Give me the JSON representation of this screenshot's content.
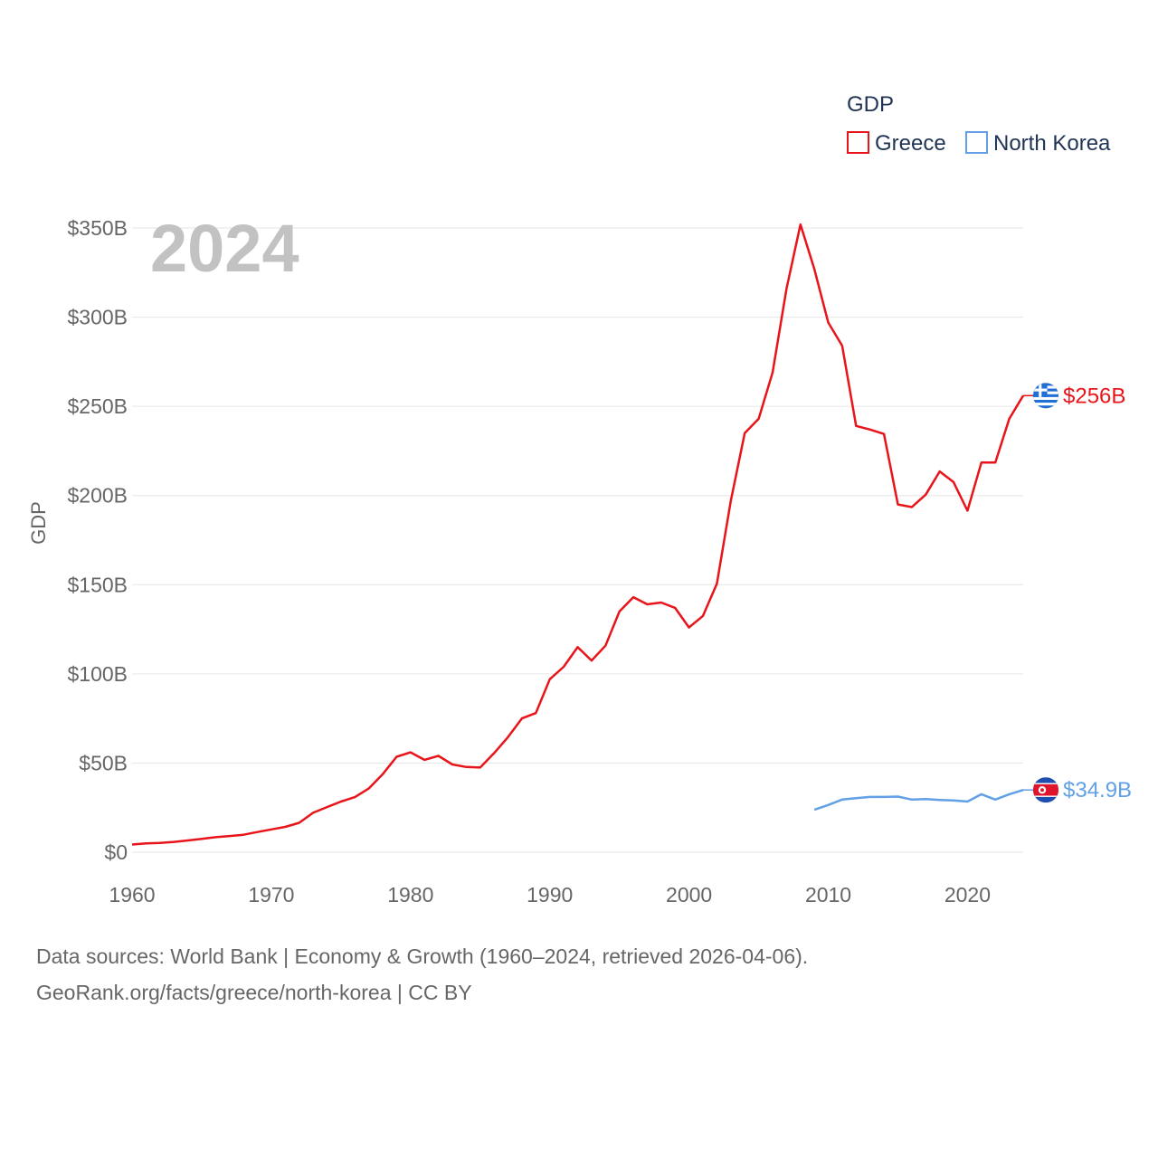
{
  "chart_data": {
    "type": "line",
    "title": "",
    "year_display": "2024",
    "xlabel": "",
    "ylabel": "GDP",
    "xlim": [
      1960,
      2024
    ],
    "ylim": [
      0,
      350
    ],
    "x_ticks": [
      1960,
      1970,
      1980,
      1990,
      2000,
      2010,
      2020
    ],
    "y_ticks": [
      0,
      50,
      100,
      150,
      200,
      250,
      300,
      350
    ],
    "y_tick_labels": [
      "$0",
      "$50B",
      "$100B",
      "$150B",
      "$200B",
      "$250B",
      "$300B",
      "$350B"
    ],
    "legend": {
      "title": "GDP",
      "position": "top-right"
    },
    "series": [
      {
        "name": "Greece",
        "color": "#e8141a",
        "flag_icon": "greece-flag-icon",
        "end_label": "$256B",
        "points": [
          [
            1960,
            4.3
          ],
          [
            1961,
            4.9
          ],
          [
            1962,
            5.2
          ],
          [
            1963,
            5.8
          ],
          [
            1964,
            6.6
          ],
          [
            1965,
            7.5
          ],
          [
            1966,
            8.4
          ],
          [
            1967,
            9.1
          ],
          [
            1968,
            9.8
          ],
          [
            1969,
            11.3
          ],
          [
            1970,
            12.8
          ],
          [
            1971,
            14.2
          ],
          [
            1972,
            16.5
          ],
          [
            1973,
            22.1
          ],
          [
            1974,
            25.3
          ],
          [
            1975,
            28.4
          ],
          [
            1976,
            30.9
          ],
          [
            1977,
            35.7
          ],
          [
            1978,
            43.7
          ],
          [
            1979,
            53.5
          ],
          [
            1980,
            56.0
          ],
          [
            1981,
            51.8
          ],
          [
            1982,
            54.0
          ],
          [
            1983,
            49.2
          ],
          [
            1984,
            47.8
          ],
          [
            1985,
            47.5
          ],
          [
            1986,
            55.6
          ],
          [
            1987,
            64.5
          ],
          [
            1988,
            75.0
          ],
          [
            1989,
            78.0
          ],
          [
            1990,
            97.0
          ],
          [
            1991,
            104.0
          ],
          [
            1992,
            115.0
          ],
          [
            1993,
            107.5
          ],
          [
            1994,
            115.8
          ],
          [
            1995,
            135.0
          ],
          [
            1996,
            143.0
          ],
          [
            1997,
            139.0
          ],
          [
            1998,
            140.0
          ],
          [
            1999,
            137.0
          ],
          [
            2000,
            126.0
          ],
          [
            2001,
            132.5
          ],
          [
            2002,
            150.5
          ],
          [
            2003,
            197.0
          ],
          [
            2004,
            235.0
          ],
          [
            2005,
            243.0
          ],
          [
            2006,
            269.0
          ],
          [
            2007,
            316.0
          ],
          [
            2008,
            352.0
          ],
          [
            2009,
            327.0
          ],
          [
            2010,
            297.0
          ],
          [
            2011,
            284.0
          ],
          [
            2012,
            239.0
          ],
          [
            2013,
            237.0
          ],
          [
            2014,
            234.5
          ],
          [
            2015,
            195.0
          ],
          [
            2016,
            193.5
          ],
          [
            2017,
            200.5
          ],
          [
            2018,
            213.5
          ],
          [
            2019,
            207.5
          ],
          [
            2020,
            191.5
          ],
          [
            2021,
            218.5
          ],
          [
            2022,
            218.5
          ],
          [
            2023,
            243.0
          ],
          [
            2024,
            256.0
          ]
        ]
      },
      {
        "name": "North Korea",
        "color": "#61a0e6",
        "flag_icon": "north-korea-flag-icon",
        "end_label": "$34.9B",
        "points": [
          [
            2009,
            23.8
          ],
          [
            2010,
            26.5
          ],
          [
            2011,
            29.5
          ],
          [
            2012,
            30.3
          ],
          [
            2013,
            31.0
          ],
          [
            2014,
            31.0
          ],
          [
            2015,
            31.2
          ],
          [
            2016,
            29.5
          ],
          [
            2017,
            29.8
          ],
          [
            2018,
            29.3
          ],
          [
            2019,
            29.0
          ],
          [
            2020,
            28.4
          ],
          [
            2021,
            32.5
          ],
          [
            2022,
            29.5
          ],
          [
            2023,
            32.5
          ],
          [
            2024,
            34.9
          ]
        ]
      }
    ]
  },
  "footer": {
    "line1": "Data sources: World Bank | Economy & Growth (1960–2024, retrieved 2026-04-06).",
    "line2": "GeoRank.org/facts/greece/north-korea | CC BY"
  }
}
